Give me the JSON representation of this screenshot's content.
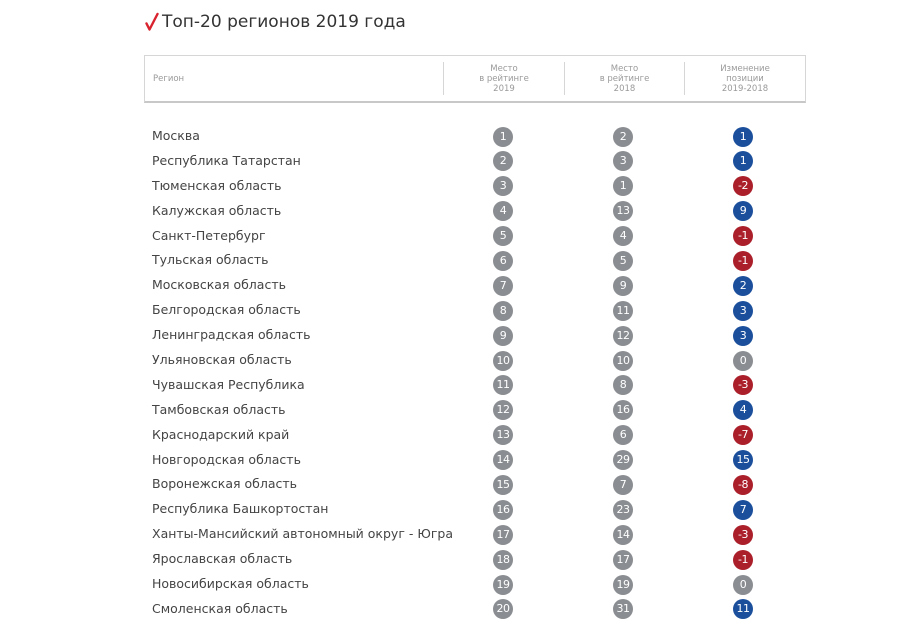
{
  "title": "Топ-20 регионов 2019 года",
  "colors": {
    "accent": "#d9232e",
    "badge_gray": "#8a8d91",
    "positive": "#1b4f9c",
    "negative": "#ab1f2a"
  },
  "header": {
    "region": "Регион",
    "rank2019": [
      "Место",
      "в рейтинге",
      "2019"
    ],
    "rank2018": [
      "Место",
      "в рейтинге",
      "2018"
    ],
    "change": [
      "Изменение",
      "позиции",
      "2019-2018"
    ]
  },
  "rows": [
    {
      "region": "Москва",
      "rank2019": "1",
      "rank2018": "2",
      "change": "1",
      "trend": "up"
    },
    {
      "region": "Республика Татарстан",
      "rank2019": "2",
      "rank2018": "3",
      "change": "1",
      "trend": "up"
    },
    {
      "region": "Тюменская область",
      "rank2019": "3",
      "rank2018": "1",
      "change": "-2",
      "trend": "down"
    },
    {
      "region": "Калужская область",
      "rank2019": "4",
      "rank2018": "13",
      "change": "9",
      "trend": "up"
    },
    {
      "region": "Санкт-Петербург",
      "rank2019": "5",
      "rank2018": "4",
      "change": "-1",
      "trend": "down"
    },
    {
      "region": "Тульская область",
      "rank2019": "6",
      "rank2018": "5",
      "change": "-1",
      "trend": "down"
    },
    {
      "region": "Московская область",
      "rank2019": "7",
      "rank2018": "9",
      "change": "2",
      "trend": "up"
    },
    {
      "region": "Белгородская область",
      "rank2019": "8",
      "rank2018": "11",
      "change": "3",
      "trend": "up"
    },
    {
      "region": "Ленинградская область",
      "rank2019": "9",
      "rank2018": "12",
      "change": "3",
      "trend": "up"
    },
    {
      "region": "Ульяновская область",
      "rank2019": "10",
      "rank2018": "10",
      "change": "0",
      "trend": "same"
    },
    {
      "region": "Чувашская Республика",
      "rank2019": "11",
      "rank2018": "8",
      "change": "-3",
      "trend": "down"
    },
    {
      "region": "Тамбовская область",
      "rank2019": "12",
      "rank2018": "16",
      "change": "4",
      "trend": "up"
    },
    {
      "region": "Краснодарский край",
      "rank2019": "13",
      "rank2018": "6",
      "change": "-7",
      "trend": "down"
    },
    {
      "region": "Новгородская область",
      "rank2019": "14",
      "rank2018": "29",
      "change": "15",
      "trend": "up"
    },
    {
      "region": "Воронежская область",
      "rank2019": "15",
      "rank2018": "7",
      "change": "-8",
      "trend": "down"
    },
    {
      "region": "Республика Башкортостан",
      "rank2019": "16",
      "rank2018": "23",
      "change": "7",
      "trend": "up"
    },
    {
      "region": "Ханты-Мансийский автономный округ - Югра",
      "rank2019": "17",
      "rank2018": "14",
      "change": "-3",
      "trend": "down"
    },
    {
      "region": "Ярославская область",
      "rank2019": "18",
      "rank2018": "17",
      "change": "-1",
      "trend": "down"
    },
    {
      "region": "Новосибирская область",
      "rank2019": "19",
      "rank2018": "19",
      "change": "0",
      "trend": "same"
    },
    {
      "region": "Смоленская область",
      "rank2019": "20",
      "rank2018": "31",
      "change": "11",
      "trend": "up"
    }
  ]
}
